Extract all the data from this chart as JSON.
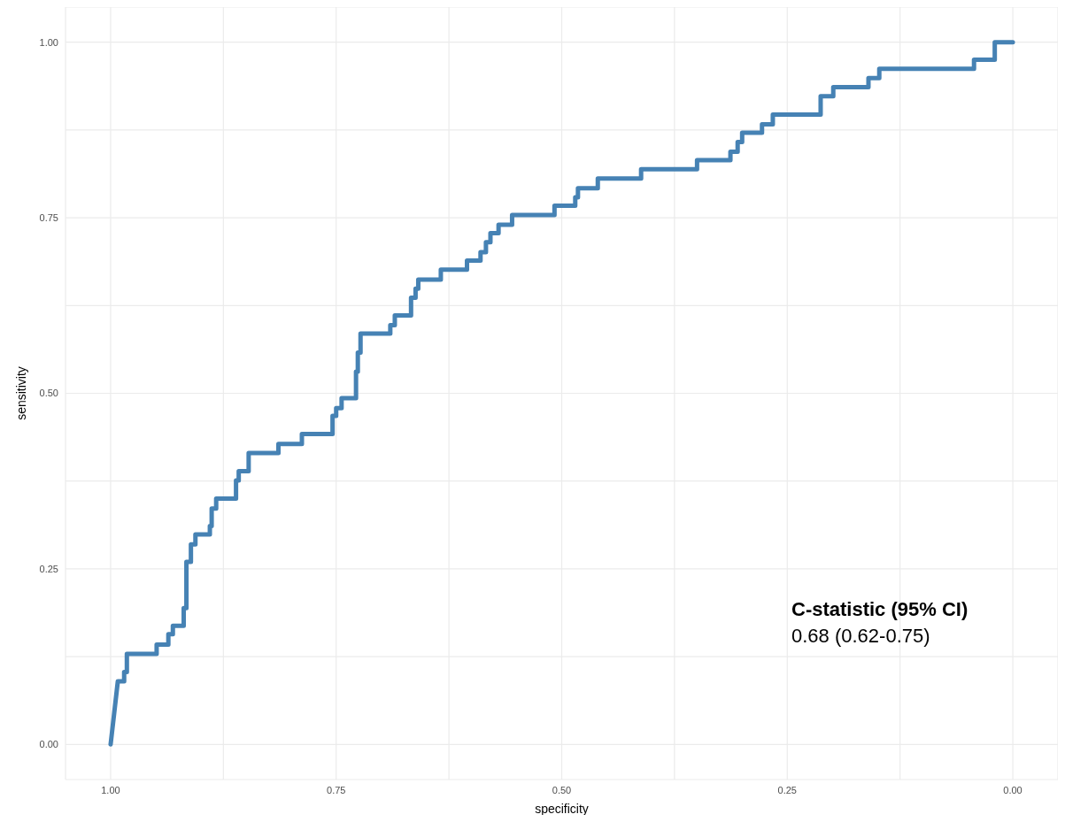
{
  "chart_data": {
    "type": "line",
    "xlabel": "specificity",
    "ylabel": "sensitivity",
    "color": "#4682b4",
    "x": [
      1,
      0.992,
      0.985,
      0.985,
      0.982,
      0.982,
      0.949,
      0.949,
      0.936,
      0.936,
      0.931,
      0.931,
      0.919,
      0.919,
      0.916,
      0.916,
      0.911,
      0.911,
      0.906,
      0.906,
      0.89,
      0.89,
      0.888,
      0.888,
      0.883,
      0.883,
      0.861,
      0.861,
      0.858,
      0.858,
      0.847,
      0.847,
      0.814,
      0.814,
      0.788,
      0.788,
      0.754,
      0.754,
      0.75,
      0.75,
      0.744,
      0.744,
      0.728,
      0.728,
      0.726,
      0.726,
      0.723,
      0.723,
      0.69,
      0.69,
      0.685,
      0.685,
      0.667,
      0.667,
      0.662,
      0.662,
      0.659,
      0.659,
      0.634,
      0.634,
      0.605,
      0.605,
      0.59,
      0.59,
      0.584,
      0.584,
      0.579,
      0.579,
      0.57,
      0.57,
      0.555,
      0.555,
      0.508,
      0.508,
      0.485,
      0.485,
      0.482,
      0.482,
      0.46,
      0.46,
      0.412,
      0.412,
      0.35,
      0.35,
      0.313,
      0.313,
      0.305,
      0.305,
      0.3,
      0.3,
      0.278,
      0.278,
      0.266,
      0.266,
      0.213,
      0.213,
      0.199,
      0.199,
      0.16,
      0.16,
      0.148,
      0.148,
      0.043,
      0.043,
      0.02,
      0.02,
      0
    ],
    "values": [
      0,
      0.09,
      0.09,
      0.103,
      0.103,
      0.129,
      0.129,
      0.142,
      0.142,
      0.157,
      0.157,
      0.169,
      0.169,
      0.194,
      0.194,
      0.26,
      0.26,
      0.285,
      0.285,
      0.299,
      0.299,
      0.311,
      0.311,
      0.336,
      0.336,
      0.35,
      0.35,
      0.376,
      0.376,
      0.389,
      0.389,
      0.415,
      0.415,
      0.428,
      0.428,
      0.442,
      0.442,
      0.468,
      0.468,
      0.479,
      0.479,
      0.493,
      0.493,
      0.531,
      0.531,
      0.558,
      0.558,
      0.585,
      0.585,
      0.597,
      0.597,
      0.611,
      0.611,
      0.636,
      0.636,
      0.649,
      0.649,
      0.662,
      0.662,
      0.676,
      0.676,
      0.689,
      0.689,
      0.701,
      0.701,
      0.715,
      0.715,
      0.728,
      0.728,
      0.74,
      0.74,
      0.754,
      0.754,
      0.767,
      0.767,
      0.779,
      0.779,
      0.792,
      0.792,
      0.806,
      0.806,
      0.819,
      0.819,
      0.832,
      0.832,
      0.844,
      0.844,
      0.858,
      0.858,
      0.871,
      0.871,
      0.883,
      0.883,
      0.897,
      0.897,
      0.923,
      0.923,
      0.936,
      0.936,
      0.949,
      0.949,
      0.962,
      0.962,
      0.975,
      0.975,
      1,
      1
    ],
    "xlim": [
      1.05,
      -0.05
    ],
    "ylim": [
      -0.05,
      1.05
    ],
    "xticks": [
      {
        "value": 1,
        "label": "1.00"
      },
      {
        "value": 0.875,
        "label": null
      },
      {
        "value": 0.75,
        "label": "0.75"
      },
      {
        "value": 0.625,
        "label": null
      },
      {
        "value": 0.5,
        "label": "0.50"
      },
      {
        "value": 0.375,
        "label": null
      },
      {
        "value": 0.25,
        "label": "0.25"
      },
      {
        "value": 0.125,
        "label": null
      },
      {
        "value": 0,
        "label": "0.00"
      }
    ],
    "yticks": [
      {
        "value": 0,
        "label": "0.00"
      },
      {
        "value": 0.125,
        "label": null
      },
      {
        "value": 0.25,
        "label": "0.25"
      },
      {
        "value": 0.375,
        "label": null
      },
      {
        "value": 0.5,
        "label": "0.50"
      },
      {
        "value": 0.625,
        "label": null
      },
      {
        "value": 0.75,
        "label": "0.75"
      },
      {
        "value": 0.875,
        "label": null
      },
      {
        "value": 1,
        "label": "1.00"
      }
    ],
    "grid": true,
    "annotations": [
      "C-statistic (95% CI)",
      "0.68 (0.62-0.75)"
    ]
  }
}
